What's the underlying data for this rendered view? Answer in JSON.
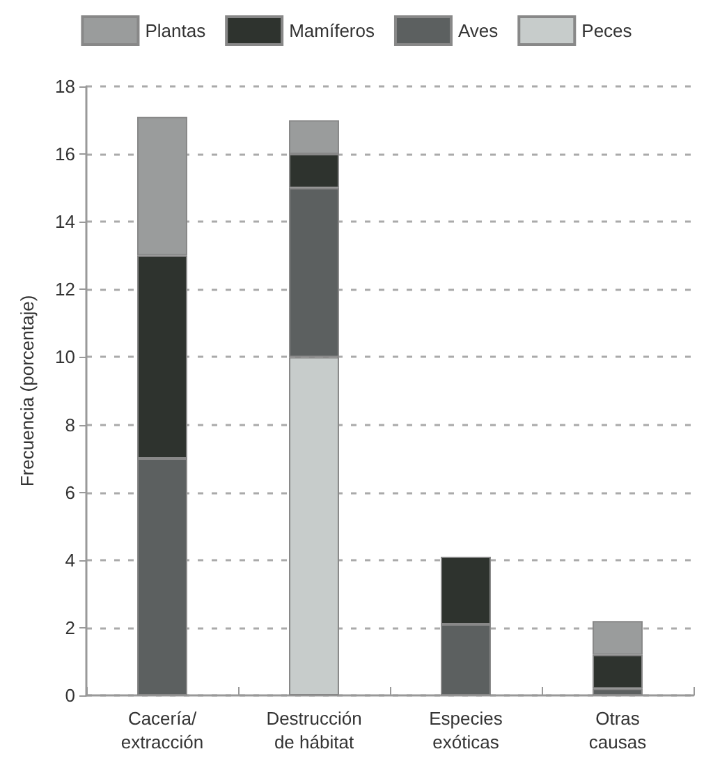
{
  "chart_data": {
    "type": "bar",
    "stacked": true,
    "ylabel": "Frecuencia (porcentaje)",
    "categories": [
      "Cacería/\nextracción",
      "Destrucción\nde hábitat",
      "Especies\nexóticas",
      "Otras\ncausas"
    ],
    "series": [
      {
        "name": "Peces",
        "color": "#c7cccb",
        "values": [
          0,
          10,
          0,
          0
        ]
      },
      {
        "name": "Aves",
        "color": "#5c6060",
        "values": [
          7,
          5,
          2.1,
          0.2
        ]
      },
      {
        "name": "Mamíferos",
        "color": "#2e332e",
        "values": [
          6,
          1,
          2,
          1
        ]
      },
      {
        "name": "Plantas",
        "color": "#9a9c9c",
        "values": [
          4.1,
          1,
          0,
          1
        ]
      }
    ],
    "ylim": [
      0,
      18
    ],
    "yticks": [
      0,
      2,
      4,
      6,
      8,
      10,
      12,
      14,
      16,
      18
    ],
    "grid": "y",
    "legend": "top"
  }
}
